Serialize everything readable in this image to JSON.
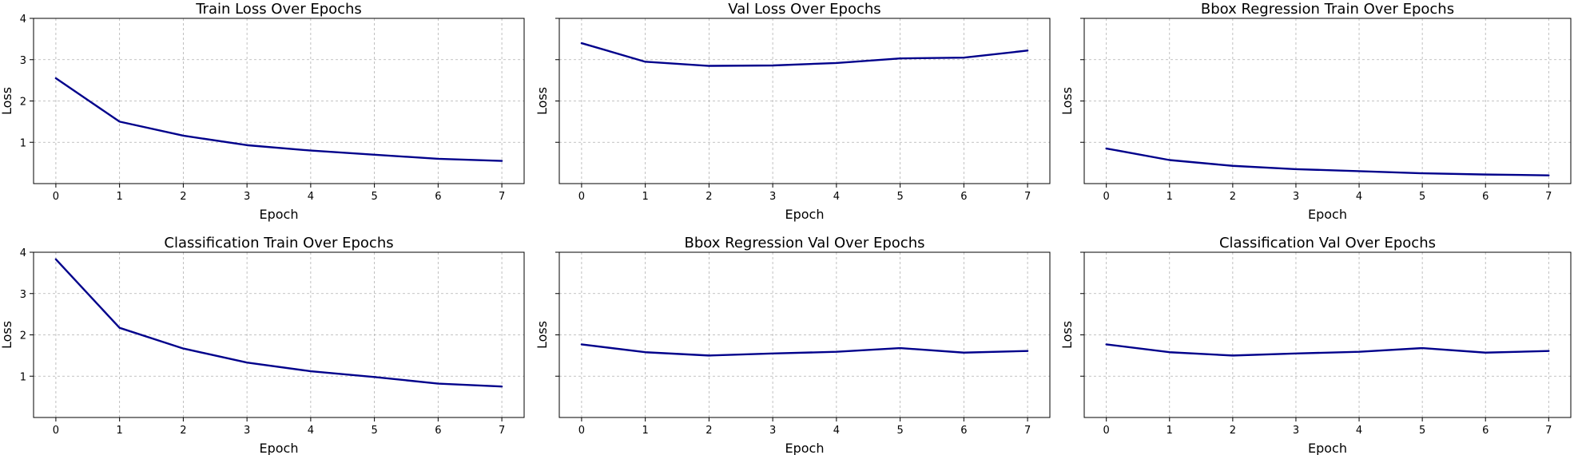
{
  "chart_data": [
    {
      "type": "line",
      "title": "Train Loss Over Epochs",
      "xlabel": "Epoch",
      "ylabel": "Loss",
      "x": [
        0,
        1,
        2,
        3,
        4,
        5,
        6,
        7
      ],
      "xlim": [
        -0.35,
        7.35
      ],
      "ylim": [
        0.0,
        4.0
      ],
      "yticks": [
        1,
        2,
        3,
        4
      ],
      "ytick_labels_visible": true,
      "grid": true,
      "color": "#00008b",
      "series": [
        {
          "values": [
            2.55,
            1.5,
            1.16,
            0.93,
            0.8,
            0.7,
            0.6,
            0.55
          ]
        }
      ]
    },
    {
      "type": "line",
      "title": "Val Loss Over Epochs",
      "xlabel": "Epoch",
      "ylabel": "Loss",
      "x": [
        0,
        1,
        2,
        3,
        4,
        5,
        6,
        7
      ],
      "xlim": [
        -0.35,
        7.35
      ],
      "ylim": [
        0.0,
        4.0
      ],
      "yticks": [
        1,
        2,
        3,
        4
      ],
      "ytick_labels_visible": false,
      "grid": true,
      "color": "#00008b",
      "series": [
        {
          "values": [
            3.4,
            2.95,
            2.85,
            2.86,
            2.92,
            3.03,
            3.05,
            3.22
          ]
        }
      ]
    },
    {
      "type": "line",
      "title": "Bbox Regression Train Over Epochs",
      "xlabel": "Epoch",
      "ylabel": "Loss",
      "x": [
        0,
        1,
        2,
        3,
        4,
        5,
        6,
        7
      ],
      "xlim": [
        -0.35,
        7.35
      ],
      "ylim": [
        0.0,
        4.0
      ],
      "yticks": [
        1,
        2,
        3,
        4
      ],
      "ytick_labels_visible": false,
      "grid": true,
      "color": "#00008b",
      "series": [
        {
          "values": [
            0.85,
            0.57,
            0.43,
            0.35,
            0.3,
            0.25,
            0.22,
            0.2
          ]
        }
      ]
    },
    {
      "type": "line",
      "title": "Classification Train Over Epochs",
      "xlabel": "Epoch",
      "ylabel": "Loss",
      "x": [
        0,
        1,
        2,
        3,
        4,
        5,
        6,
        7
      ],
      "xlim": [
        -0.35,
        7.35
      ],
      "ylim": [
        0.0,
        4.0
      ],
      "yticks": [
        1,
        2,
        3,
        4
      ],
      "ytick_labels_visible": true,
      "grid": true,
      "color": "#00008b",
      "series": [
        {
          "values": [
            3.83,
            2.17,
            1.67,
            1.33,
            1.12,
            0.98,
            0.82,
            0.75
          ]
        }
      ]
    },
    {
      "type": "line",
      "title": "Bbox Regression Val Over Epochs",
      "xlabel": "Epoch",
      "ylabel": "Loss",
      "x": [
        0,
        1,
        2,
        3,
        4,
        5,
        6,
        7
      ],
      "xlim": [
        -0.35,
        7.35
      ],
      "ylim": [
        0.0,
        4.0
      ],
      "yticks": [
        1,
        2,
        3,
        4
      ],
      "ytick_labels_visible": false,
      "grid": true,
      "color": "#00008b",
      "series": [
        {
          "values": [
            1.77,
            1.58,
            1.5,
            1.55,
            1.59,
            1.68,
            1.57,
            1.61
          ]
        }
      ]
    },
    {
      "type": "line",
      "title": "Classification Val Over Epochs",
      "xlabel": "Epoch",
      "ylabel": "Loss",
      "x": [
        0,
        1,
        2,
        3,
        4,
        5,
        6,
        7
      ],
      "xlim": [
        -0.35,
        7.35
      ],
      "ylim": [
        0.0,
        4.0
      ],
      "yticks": [
        1,
        2,
        3,
        4
      ],
      "ytick_labels_visible": false,
      "grid": true,
      "color": "#00008b",
      "series": [
        {
          "values": [
            1.77,
            1.58,
            1.5,
            1.55,
            1.59,
            1.68,
            1.57,
            1.61
          ]
        }
      ]
    }
  ]
}
